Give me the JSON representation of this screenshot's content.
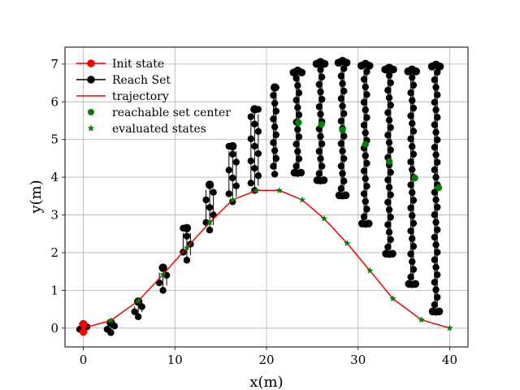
{
  "chart_data": {
    "type": "scatter",
    "title": "",
    "xlabel": "x(m)",
    "ylabel": "y(m)",
    "xlim": [
      -2,
      42
    ],
    "ylim": [
      -0.5,
      7.45
    ],
    "xticks": [
      0,
      10,
      20,
      30,
      40
    ],
    "yticks": [
      0,
      1,
      2,
      3,
      4,
      5,
      6,
      7
    ],
    "xtick_labels": [
      "0",
      "10",
      "20",
      "30",
      "40"
    ],
    "ytick_labels": [
      "0",
      "1",
      "2",
      "3",
      "4",
      "5",
      "6",
      "7"
    ],
    "grid": true,
    "legend_position": "top-left",
    "legend": [
      {
        "label": "Init state",
        "style": "red-line-circle"
      },
      {
        "label": "Reach Set",
        "style": "black-line-circle"
      },
      {
        "label": "trajectory",
        "style": "red-line"
      },
      {
        "label": "reachable set center",
        "style": "green-circle"
      },
      {
        "label": "evaluated states",
        "style": "green-star"
      }
    ],
    "colors": {
      "init": "#ff0000",
      "reach": "#000000",
      "trajectory": "#ee0000",
      "center": "#008000",
      "evaluated": "#008000"
    },
    "init_state": {
      "x": [
        0,
        0
      ],
      "y": [
        0.1,
        -0.1
      ]
    },
    "trajectory": {
      "x": [
        0,
        3,
        6,
        8.7,
        11.3,
        13.8,
        16.3,
        18.9,
        21.4,
        23.9,
        26.3,
        28.8,
        31.3,
        33.8,
        36.9,
        40
      ],
      "y": [
        0,
        0.2,
        0.72,
        1.42,
        2.13,
        2.8,
        3.4,
        3.65,
        3.65,
        3.4,
        2.9,
        2.25,
        1.52,
        0.78,
        0.22,
        0
      ]
    },
    "evaluated_states": {
      "x": [
        3,
        6,
        8.7,
        11.3,
        13.8,
        16.3,
        18.9,
        21.4,
        23.9,
        26.3,
        28.8,
        31.3,
        33.8,
        36.9,
        40
      ],
      "y": [
        0.2,
        0.72,
        1.42,
        2.13,
        2.8,
        3.4,
        3.65,
        3.65,
        3.4,
        2.9,
        2.25,
        1.52,
        0.78,
        0.22,
        0
      ]
    },
    "reachable_set_centers": {
      "x": [
        23.5,
        26,
        28.3,
        30.8,
        33.4,
        36.2,
        38.8
      ],
      "y": [
        5.45,
        5.4,
        5.25,
        4.87,
        4.42,
        3.98,
        3.72
      ]
    },
    "reach_sets": [
      {
        "x": 0,
        "ymin": -0.1,
        "ymax": 0.1
      },
      {
        "x": 3,
        "ymin": -0.12,
        "ymax": 0.14
      },
      {
        "x": 6,
        "ymin": 0.3,
        "ymax": 0.7
      },
      {
        "x": 8.7,
        "ymin": 1.0,
        "ymax": 1.6
      },
      {
        "x": 11.3,
        "ymin": 1.8,
        "ymax": 2.65
      },
      {
        "x": 13.8,
        "ymin": 2.6,
        "ymax": 3.8
      },
      {
        "x": 16.3,
        "ymin": 3.35,
        "ymax": 4.82
      },
      {
        "x": 18.7,
        "ymin": 3.65,
        "ymax": 5.8
      },
      {
        "x": 20.9,
        "ymin": 4.08,
        "ymax": 6.38
      },
      {
        "x": 23.4,
        "ymin": 4.1,
        "ymax": 6.82
      },
      {
        "x": 25.9,
        "ymin": 3.9,
        "ymax": 7.05
      },
      {
        "x": 28.3,
        "ymin": 3.5,
        "ymax": 7.08
      },
      {
        "x": 30.8,
        "ymin": 2.75,
        "ymax": 7.0
      },
      {
        "x": 33.4,
        "ymin": 1.95,
        "ymax": 6.9
      },
      {
        "x": 35.9,
        "ymin": 1.15,
        "ymax": 6.85
      },
      {
        "x": 38.5,
        "ymin": 0.42,
        "ymax": 6.98
      }
    ]
  }
}
